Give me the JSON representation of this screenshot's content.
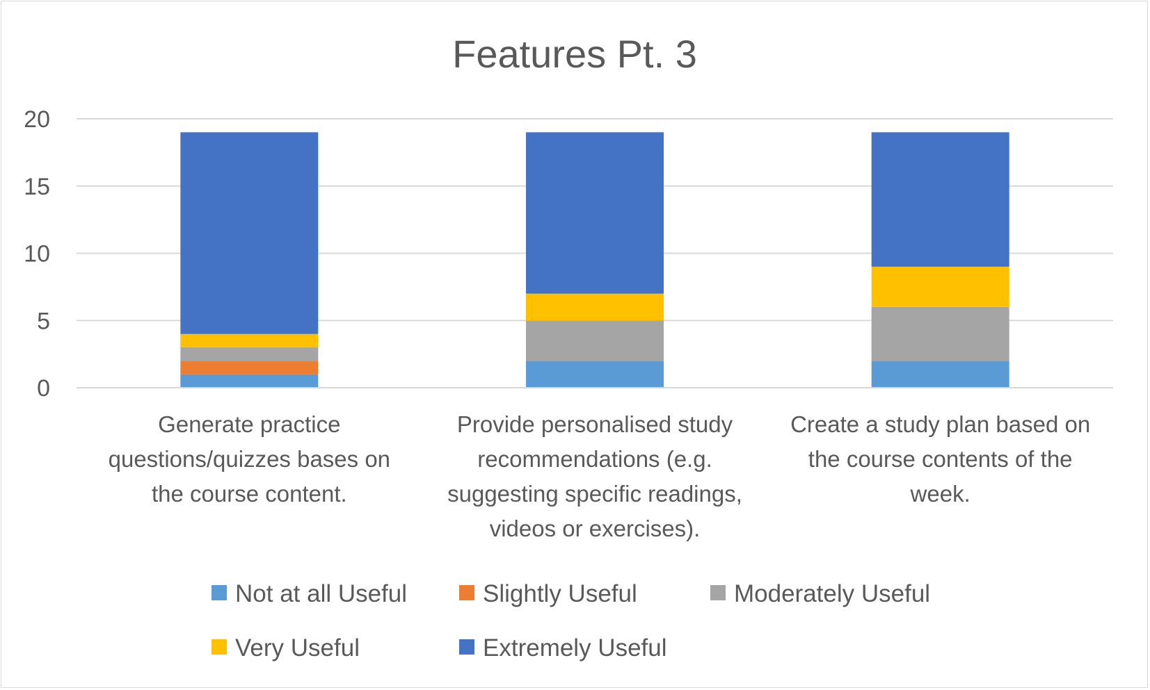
{
  "chart_data": {
    "type": "bar",
    "stacked": true,
    "title": "Features Pt. 3",
    "xlabel": "",
    "ylabel": "",
    "ylim": [
      0,
      20
    ],
    "yticks": [
      0,
      5,
      10,
      15,
      20
    ],
    "grid": true,
    "legend": "bottom",
    "categories": [
      [
        "Generate practice",
        "questions/quizzes bases on",
        "the course content."
      ],
      [
        "Provide personalised study",
        "recommendations (e.g.",
        "suggesting specific readings,",
        "videos or exercises)."
      ],
      [
        "Create a study plan based on",
        "the course contents of the",
        "week."
      ]
    ],
    "series": [
      {
        "name": "Not at all Useful",
        "color": "#5b9bd5",
        "values": [
          1,
          2,
          2
        ]
      },
      {
        "name": "Slightly Useful",
        "color": "#ed7d31",
        "values": [
          1,
          0,
          0
        ]
      },
      {
        "name": "Moderately Useful",
        "color": "#a5a5a5",
        "values": [
          1,
          3,
          4
        ]
      },
      {
        "name": "Very Useful",
        "color": "#ffc000",
        "values": [
          1,
          2,
          3
        ]
      },
      {
        "name": "Extremely Useful",
        "color": "#4472c4",
        "values": [
          15,
          12,
          10
        ]
      }
    ]
  }
}
